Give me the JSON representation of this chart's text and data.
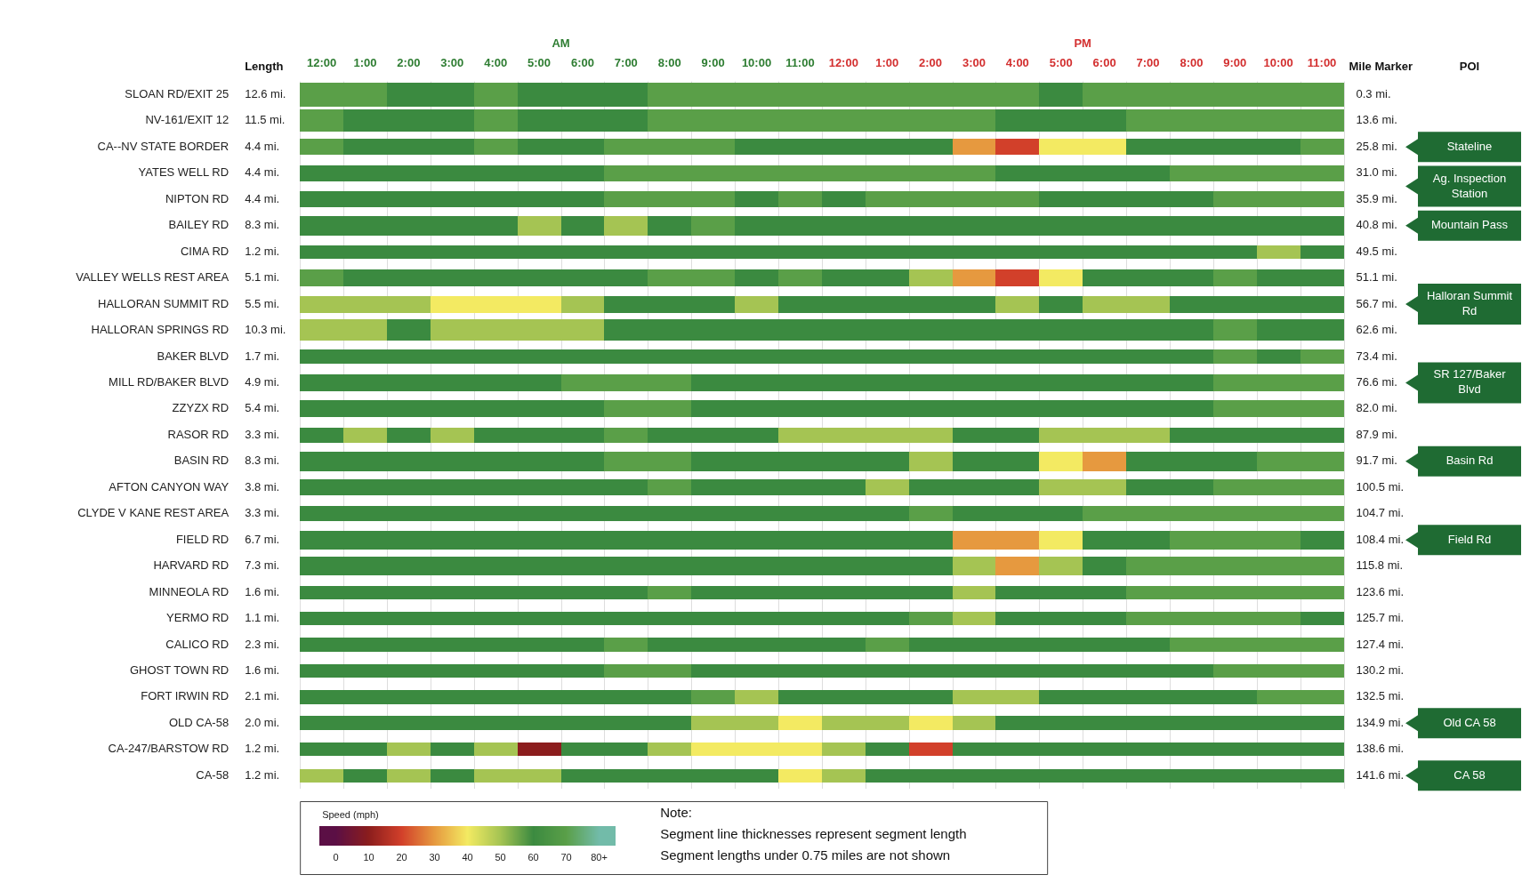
{
  "chart_data": {
    "type": "heatmap",
    "categories": [
      "12:00",
      "1:00",
      "2:00",
      "3:00",
      "4:00",
      "5:00",
      "6:00",
      "7:00",
      "8:00",
      "9:00",
      "10:00",
      "11:00",
      "12:00",
      "1:00",
      "2:00",
      "3:00",
      "4:00",
      "5:00",
      "6:00",
      "7:00",
      "8:00",
      "9:00",
      "10:00",
      "11:00"
    ],
    "y_categories": [
      "SLOAN RD/EXIT 25",
      "NV-161/EXIT 12",
      "CA--NV STATE BORDER",
      "YATES WELL RD",
      "NIPTON RD",
      "BAILEY RD",
      "CIMA RD",
      "VALLEY WELLS REST AREA",
      "HALLORAN SUMMIT RD",
      "HALLORAN SPRINGS RD",
      "BAKER BLVD",
      "MILL RD/BAKER BLVD",
      "ZZYZX RD",
      "RASOR RD",
      "BASIN RD",
      "AFTON CANYON WAY",
      "CLYDE V KANE REST AREA",
      "FIELD RD",
      "HARVARD RD",
      "MINNEOLA RD",
      "YERMO RD",
      "CALICO RD",
      "GHOST TOWN RD",
      "FORT IRWIN RD",
      "OLD CA-58",
      "CA-247/BARSTOW RD",
      "CA-58"
    ],
    "y2_categories": [
      "0.3 mi.",
      "13.6 mi.",
      "25.8 mi.",
      "31.0 mi.",
      "35.9 mi.",
      "40.8 mi.",
      "49.5 mi.",
      "51.1 mi.",
      "56.7 mi.",
      "62.6 mi.",
      "73.4 mi.",
      "76.6 mi.",
      "82.0 mi.",
      "87.9 mi.",
      "91.7 mi.",
      "100.5 mi.",
      "104.7 mi.",
      "108.4 mi.",
      "115.8 mi.",
      "123.6 mi.",
      "125.7 mi.",
      "127.4 mi.",
      "130.2 mi.",
      "132.5 mi.",
      "134.9 mi.",
      "138.6 mi.",
      "141.6 mi."
    ],
    "cells": [
      [
        70,
        70,
        60,
        60,
        70,
        60,
        60,
        60,
        70,
        70,
        70,
        70,
        70,
        70,
        70,
        70,
        70,
        60,
        70,
        70,
        70,
        70,
        70,
        70
      ],
      [
        70,
        60,
        60,
        60,
        70,
        60,
        60,
        60,
        70,
        70,
        70,
        70,
        70,
        70,
        70,
        70,
        60,
        60,
        60,
        70,
        70,
        70,
        70,
        70
      ],
      [
        70,
        60,
        60,
        60,
        70,
        60,
        60,
        70,
        70,
        70,
        60,
        60,
        60,
        60,
        60,
        30,
        20,
        40,
        40,
        60,
        60,
        60,
        60,
        70
      ],
      [
        60,
        60,
        60,
        60,
        60,
        60,
        60,
        70,
        70,
        70,
        70,
        70,
        70,
        70,
        70,
        70,
        60,
        60,
        60,
        60,
        70,
        70,
        70,
        70
      ],
      [
        60,
        60,
        60,
        60,
        60,
        60,
        60,
        70,
        70,
        70,
        60,
        70,
        60,
        70,
        70,
        70,
        70,
        60,
        60,
        60,
        60,
        70,
        70,
        70
      ],
      [
        60,
        60,
        60,
        60,
        60,
        50,
        60,
        50,
        60,
        70,
        60,
        60,
        60,
        60,
        60,
        60,
        60,
        60,
        60,
        60,
        60,
        60,
        60,
        60
      ],
      [
        60,
        60,
        60,
        60,
        60,
        60,
        60,
        60,
        60,
        60,
        60,
        60,
        60,
        60,
        60,
        60,
        60,
        60,
        60,
        60,
        60,
        60,
        50,
        60
      ],
      [
        70,
        60,
        60,
        60,
        60,
        60,
        60,
        60,
        70,
        70,
        60,
        70,
        60,
        60,
        50,
        30,
        20,
        40,
        60,
        60,
        60,
        70,
        60,
        60
      ],
      [
        50,
        50,
        50,
        40,
        40,
        40,
        50,
        60,
        60,
        60,
        50,
        60,
        60,
        60,
        60,
        60,
        50,
        60,
        50,
        50,
        60,
        60,
        60,
        60
      ],
      [
        50,
        50,
        60,
        50,
        50,
        50,
        50,
        60,
        60,
        60,
        60,
        60,
        60,
        60,
        60,
        60,
        60,
        60,
        60,
        60,
        60,
        70,
        60,
        60
      ],
      [
        60,
        60,
        60,
        60,
        60,
        60,
        60,
        60,
        60,
        60,
        60,
        60,
        60,
        60,
        60,
        60,
        60,
        60,
        60,
        60,
        60,
        70,
        60,
        70
      ],
      [
        60,
        60,
        60,
        60,
        60,
        60,
        70,
        70,
        70,
        60,
        60,
        60,
        60,
        60,
        60,
        60,
        60,
        60,
        60,
        60,
        60,
        70,
        70,
        70
      ],
      [
        60,
        60,
        60,
        60,
        60,
        60,
        60,
        70,
        70,
        60,
        60,
        60,
        60,
        60,
        60,
        60,
        60,
        60,
        60,
        60,
        60,
        70,
        70,
        70
      ],
      [
        60,
        50,
        60,
        50,
        60,
        60,
        60,
        70,
        60,
        60,
        60,
        50,
        50,
        50,
        50,
        60,
        60,
        50,
        50,
        50,
        60,
        60,
        60,
        60
      ],
      [
        60,
        60,
        60,
        60,
        60,
        60,
        60,
        70,
        70,
        60,
        60,
        60,
        60,
        60,
        50,
        60,
        60,
        40,
        30,
        60,
        60,
        60,
        70,
        70
      ],
      [
        60,
        60,
        60,
        60,
        60,
        60,
        60,
        60,
        70,
        60,
        60,
        60,
        60,
        50,
        60,
        60,
        60,
        50,
        50,
        60,
        60,
        70,
        70,
        70
      ],
      [
        60,
        60,
        60,
        60,
        60,
        60,
        60,
        60,
        60,
        60,
        60,
        60,
        60,
        60,
        70,
        60,
        60,
        60,
        70,
        70,
        70,
        70,
        70,
        70
      ],
      [
        60,
        60,
        60,
        60,
        60,
        60,
        60,
        60,
        60,
        60,
        60,
        60,
        60,
        60,
        60,
        30,
        30,
        40,
        60,
        60,
        70,
        70,
        70,
        60
      ],
      [
        60,
        60,
        60,
        60,
        60,
        60,
        60,
        60,
        60,
        60,
        60,
        60,
        60,
        60,
        60,
        50,
        30,
        50,
        60,
        70,
        70,
        70,
        70,
        70
      ],
      [
        60,
        60,
        60,
        60,
        60,
        60,
        60,
        60,
        70,
        60,
        60,
        60,
        60,
        60,
        60,
        50,
        60,
        60,
        60,
        70,
        70,
        70,
        70,
        70
      ],
      [
        60,
        60,
        60,
        60,
        60,
        60,
        60,
        60,
        60,
        60,
        60,
        60,
        60,
        60,
        70,
        50,
        60,
        60,
        60,
        70,
        70,
        70,
        70,
        60
      ],
      [
        60,
        60,
        60,
        60,
        60,
        60,
        60,
        70,
        60,
        60,
        60,
        60,
        60,
        70,
        60,
        60,
        60,
        60,
        60,
        60,
        70,
        70,
        70,
        70
      ],
      [
        60,
        60,
        60,
        60,
        60,
        60,
        60,
        70,
        70,
        60,
        60,
        60,
        60,
        60,
        60,
        60,
        60,
        60,
        60,
        60,
        60,
        70,
        70,
        70
      ],
      [
        60,
        60,
        60,
        60,
        60,
        60,
        60,
        60,
        60,
        70,
        50,
        60,
        60,
        60,
        60,
        50,
        50,
        60,
        60,
        60,
        60,
        60,
        70,
        70
      ],
      [
        60,
        60,
        60,
        60,
        60,
        60,
        60,
        60,
        60,
        50,
        50,
        40,
        50,
        50,
        40,
        50,
        60,
        60,
        60,
        60,
        60,
        60,
        60,
        60
      ],
      [
        60,
        60,
        50,
        60,
        50,
        10,
        60,
        60,
        50,
        40,
        40,
        40,
        50,
        60,
        20,
        60,
        60,
        60,
        60,
        60,
        60,
        60,
        60,
        60
      ],
      [
        50,
        60,
        50,
        60,
        50,
        50,
        60,
        60,
        60,
        60,
        60,
        40,
        50,
        60,
        60,
        60,
        60,
        60,
        60,
        60,
        60,
        60,
        60,
        60
      ]
    ],
    "clabel": "Speed (mph)",
    "clim": [
      -5,
      85
    ],
    "cticks": [
      0,
      10,
      20,
      30,
      40,
      50,
      60,
      70,
      {
        "value": 80,
        "label": "80+"
      }
    ],
    "grid": "x",
    "annotations": [
      "AM",
      "PM",
      "Length",
      "Mile Marker",
      "POI",
      "Note:",
      "Segment line thicknesses represent segment length",
      "Segment lengths under 0.75 miles are not shown",
      "12.6 mi.",
      "11.5 mi.",
      "4.4 mi.",
      "4.4 mi.",
      "4.4 mi.",
      "8.3 mi.",
      "1.2 mi.",
      "5.1 mi.",
      "5.5 mi.",
      "10.3 mi.",
      "1.7 mi.",
      "4.9 mi.",
      "5.4 mi.",
      "3.3 mi.",
      "8.3 mi.",
      "3.8 mi.",
      "3.3 mi.",
      "6.7 mi.",
      "7.3 mi.",
      "1.6 mi.",
      "1.1 mi.",
      "2.3 mi.",
      "1.6 mi.",
      "2.1 mi.",
      "2.0 mi.",
      "1.2 mi.",
      "1.2 mi.",
      "Stateline",
      "Ag. Inspection Station",
      "Mountain Pass",
      "Halloran Summit Rd",
      "SR 127/Baker Blvd",
      "Basin Rd",
      "Field Rd",
      "Old CA 58",
      "CA 58"
    ]
  }
}
